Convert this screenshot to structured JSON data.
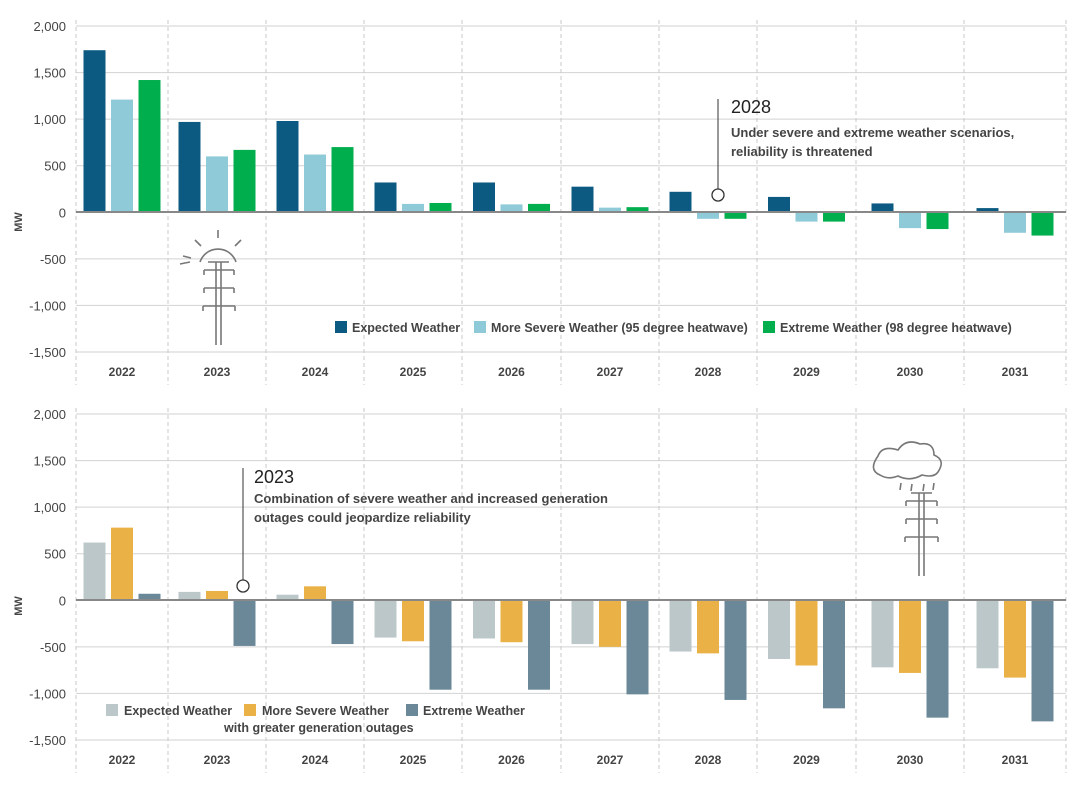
{
  "chart_data": [
    {
      "type": "bar",
      "ylabel": "MW",
      "ylim": [
        -1500,
        2000
      ],
      "yticks": [
        "2,000",
        "1,500",
        "1,000",
        "500",
        "0",
        "-500",
        "-1,000",
        "-1,500"
      ],
      "categories": [
        "2022",
        "2023",
        "2024",
        "2025",
        "2026",
        "2027",
        "2028",
        "2029",
        "2030",
        "2031"
      ],
      "series": [
        {
          "name": "Expected Weather",
          "color": "#0c5a82",
          "values": [
            1740,
            970,
            980,
            320,
            320,
            275,
            220,
            165,
            95,
            45
          ]
        },
        {
          "name": "More Severe Weather (95 degree heatwave)",
          "color": "#8ecad8",
          "values": [
            1210,
            600,
            620,
            90,
            85,
            50,
            -70,
            -100,
            -170,
            -220
          ]
        },
        {
          "name": "Extreme Weather (98 degree heatwave)",
          "color": "#00ae4d",
          "values": [
            1420,
            670,
            700,
            100,
            90,
            55,
            -70,
            -100,
            -180,
            -250
          ]
        }
      ],
      "legend_position": "bottom-right",
      "annotation": {
        "year": "2028",
        "lines": [
          "Under severe and extreme weather scenarios,",
          "reliability is threatened"
        ]
      }
    },
    {
      "type": "bar",
      "ylabel": "MW",
      "ylim": [
        -1500,
        2000
      ],
      "yticks": [
        "2,000",
        "1,500",
        "1,000",
        "500",
        "0",
        "-500",
        "-1,000",
        "-1,500"
      ],
      "categories": [
        "2022",
        "2023",
        "2024",
        "2025",
        "2026",
        "2027",
        "2028",
        "2029",
        "2030",
        "2031"
      ],
      "series": [
        {
          "name": "Expected Weather",
          "color": "#bcc7ca",
          "values": [
            620,
            90,
            60,
            -400,
            -410,
            -470,
            -550,
            -630,
            -720,
            -730
          ]
        },
        {
          "name": "More Severe Weather",
          "name_sub": "with greater generation outages",
          "color": "#e9b146",
          "values": [
            780,
            100,
            150,
            -440,
            -450,
            -500,
            -570,
            -700,
            -780,
            -830
          ]
        },
        {
          "name": "Extreme Weather",
          "color": "#6a8898",
          "values": [
            70,
            -490,
            -470,
            -960,
            -960,
            -1010,
            -1070,
            -1160,
            -1260,
            -1300
          ]
        }
      ],
      "legend_position": "bottom-left",
      "annotation": {
        "year": "2023",
        "lines": [
          "Combination of severe weather and increased generation",
          "outages could jeopardize reliability"
        ]
      }
    }
  ]
}
